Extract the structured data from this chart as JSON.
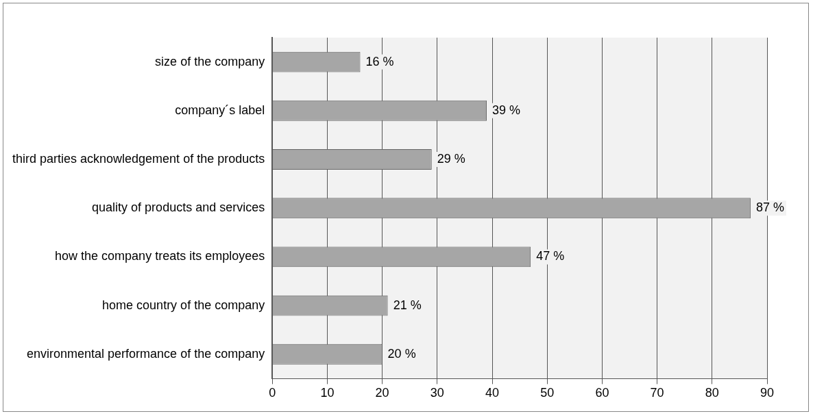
{
  "chart_data": {
    "type": "bar",
    "orientation": "horizontal",
    "categories": [
      "size of the company",
      "company´s label",
      "third parties acknowledgement of the products",
      "quality of products and services",
      "how the company treats its employees",
      "home country of the company",
      "environmental performance of the company"
    ],
    "values": [
      16,
      39,
      29,
      87,
      47,
      21,
      20
    ],
    "value_labels": [
      "16 %",
      "39 %",
      "29 %",
      "87 %",
      "47 %",
      "21 %",
      "20 %"
    ],
    "color": "#a6a6a6",
    "xlim": [
      0,
      90
    ],
    "xticks": [
      0,
      10,
      20,
      30,
      40,
      50,
      60,
      70,
      80,
      90
    ],
    "grid": "x",
    "legend": false
  }
}
